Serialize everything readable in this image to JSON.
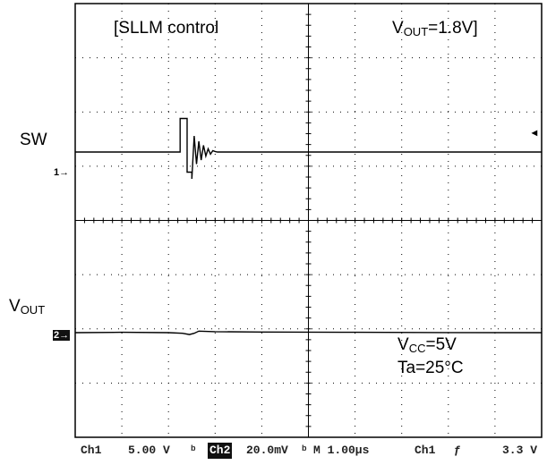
{
  "chart_data": {
    "type": "line",
    "annotations": {
      "title_left": "[SLLM control",
      "title_right_main": "V",
      "title_right_sub": "OUT",
      "title_right_tail": "=1.8V]",
      "vcc_main": "V",
      "vcc_sub": "CC",
      "vcc_tail": "=5V",
      "ta": "Ta=25°C"
    },
    "series": [
      {
        "name": "SW",
        "label_main": "SW",
        "marker": "1",
        "x": [
          0,
          2.25,
          2.25,
          2.4,
          2.4,
          2.5,
          2.5,
          2.55,
          2.6,
          2.65,
          2.7,
          2.75,
          2.8,
          2.85,
          2.9,
          2.95,
          3.0,
          3.05,
          3.1,
          10
        ],
        "y": [
          0,
          0,
          1.25,
          1.25,
          -0.75,
          -0.75,
          -1.0,
          0.6,
          -0.45,
          0.4,
          -0.3,
          0.25,
          -0.15,
          0.12,
          -0.08,
          0.05,
          0.02,
          0,
          0,
          0
        ]
      },
      {
        "name": "VOUT",
        "label_main": "V",
        "label_sub": "OUT",
        "marker": "2",
        "x": [
          0,
          1.0,
          2.0,
          2.3,
          2.45,
          2.55,
          2.65,
          3.0,
          4.0,
          6.0,
          8.0,
          10
        ],
        "y": [
          0,
          0.03,
          0,
          -0.05,
          -0.15,
          -0.05,
          0.12,
          0.08,
          0.05,
          0.03,
          0.01,
          0
        ]
      }
    ],
    "xlim": [
      0,
      10
    ],
    "ylim": [
      -4,
      4
    ],
    "grid": true,
    "readout": {
      "ch1": "Ch1",
      "ch1_scale": "5.00 V",
      "ch1_bw": "ᵇ",
      "ch2": "Ch2",
      "ch2_scale": "20.0mV",
      "ch2_bw": "ᵇ",
      "time": "M 1.00µs",
      "trig_src": "Ch1",
      "trig_slope": "ƒ",
      "trig_level": "3.3 V"
    },
    "trigger_marker": "◂"
  }
}
